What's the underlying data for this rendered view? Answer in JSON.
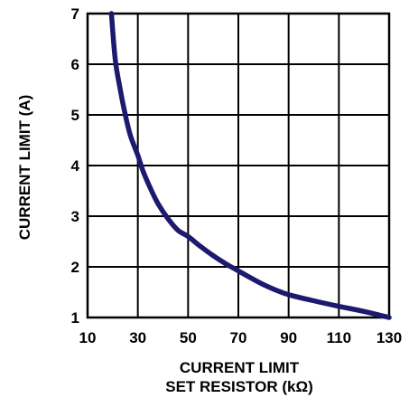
{
  "chart_data": {
    "type": "line",
    "title": "",
    "xlabel_lines": [
      "CURRENT LIMIT",
      "SET RESISTOR (kΩ)"
    ],
    "ylabel": "CURRENT  LIMIT (A)",
    "xlim": [
      10,
      130
    ],
    "ylim": [
      1,
      7
    ],
    "x_ticks": [
      10,
      30,
      50,
      70,
      90,
      110,
      130
    ],
    "y_ticks": [
      1,
      2,
      3,
      4,
      5,
      6,
      7
    ],
    "grid": true,
    "legend": "none",
    "series": [
      {
        "color": "#1c1a6e",
        "x": [
          19.5,
          21,
          23,
          25,
          27,
          30,
          32,
          35,
          38,
          42,
          46,
          50,
          55,
          60,
          65,
          70,
          75,
          80,
          85,
          90,
          100,
          110,
          120,
          130
        ],
        "y": [
          7.0,
          6.1,
          5.5,
          5.0,
          4.6,
          4.2,
          3.9,
          3.55,
          3.25,
          2.95,
          2.72,
          2.6,
          2.4,
          2.22,
          2.06,
          1.92,
          1.78,
          1.65,
          1.54,
          1.45,
          1.33,
          1.22,
          1.12,
          1.0
        ]
      }
    ]
  }
}
